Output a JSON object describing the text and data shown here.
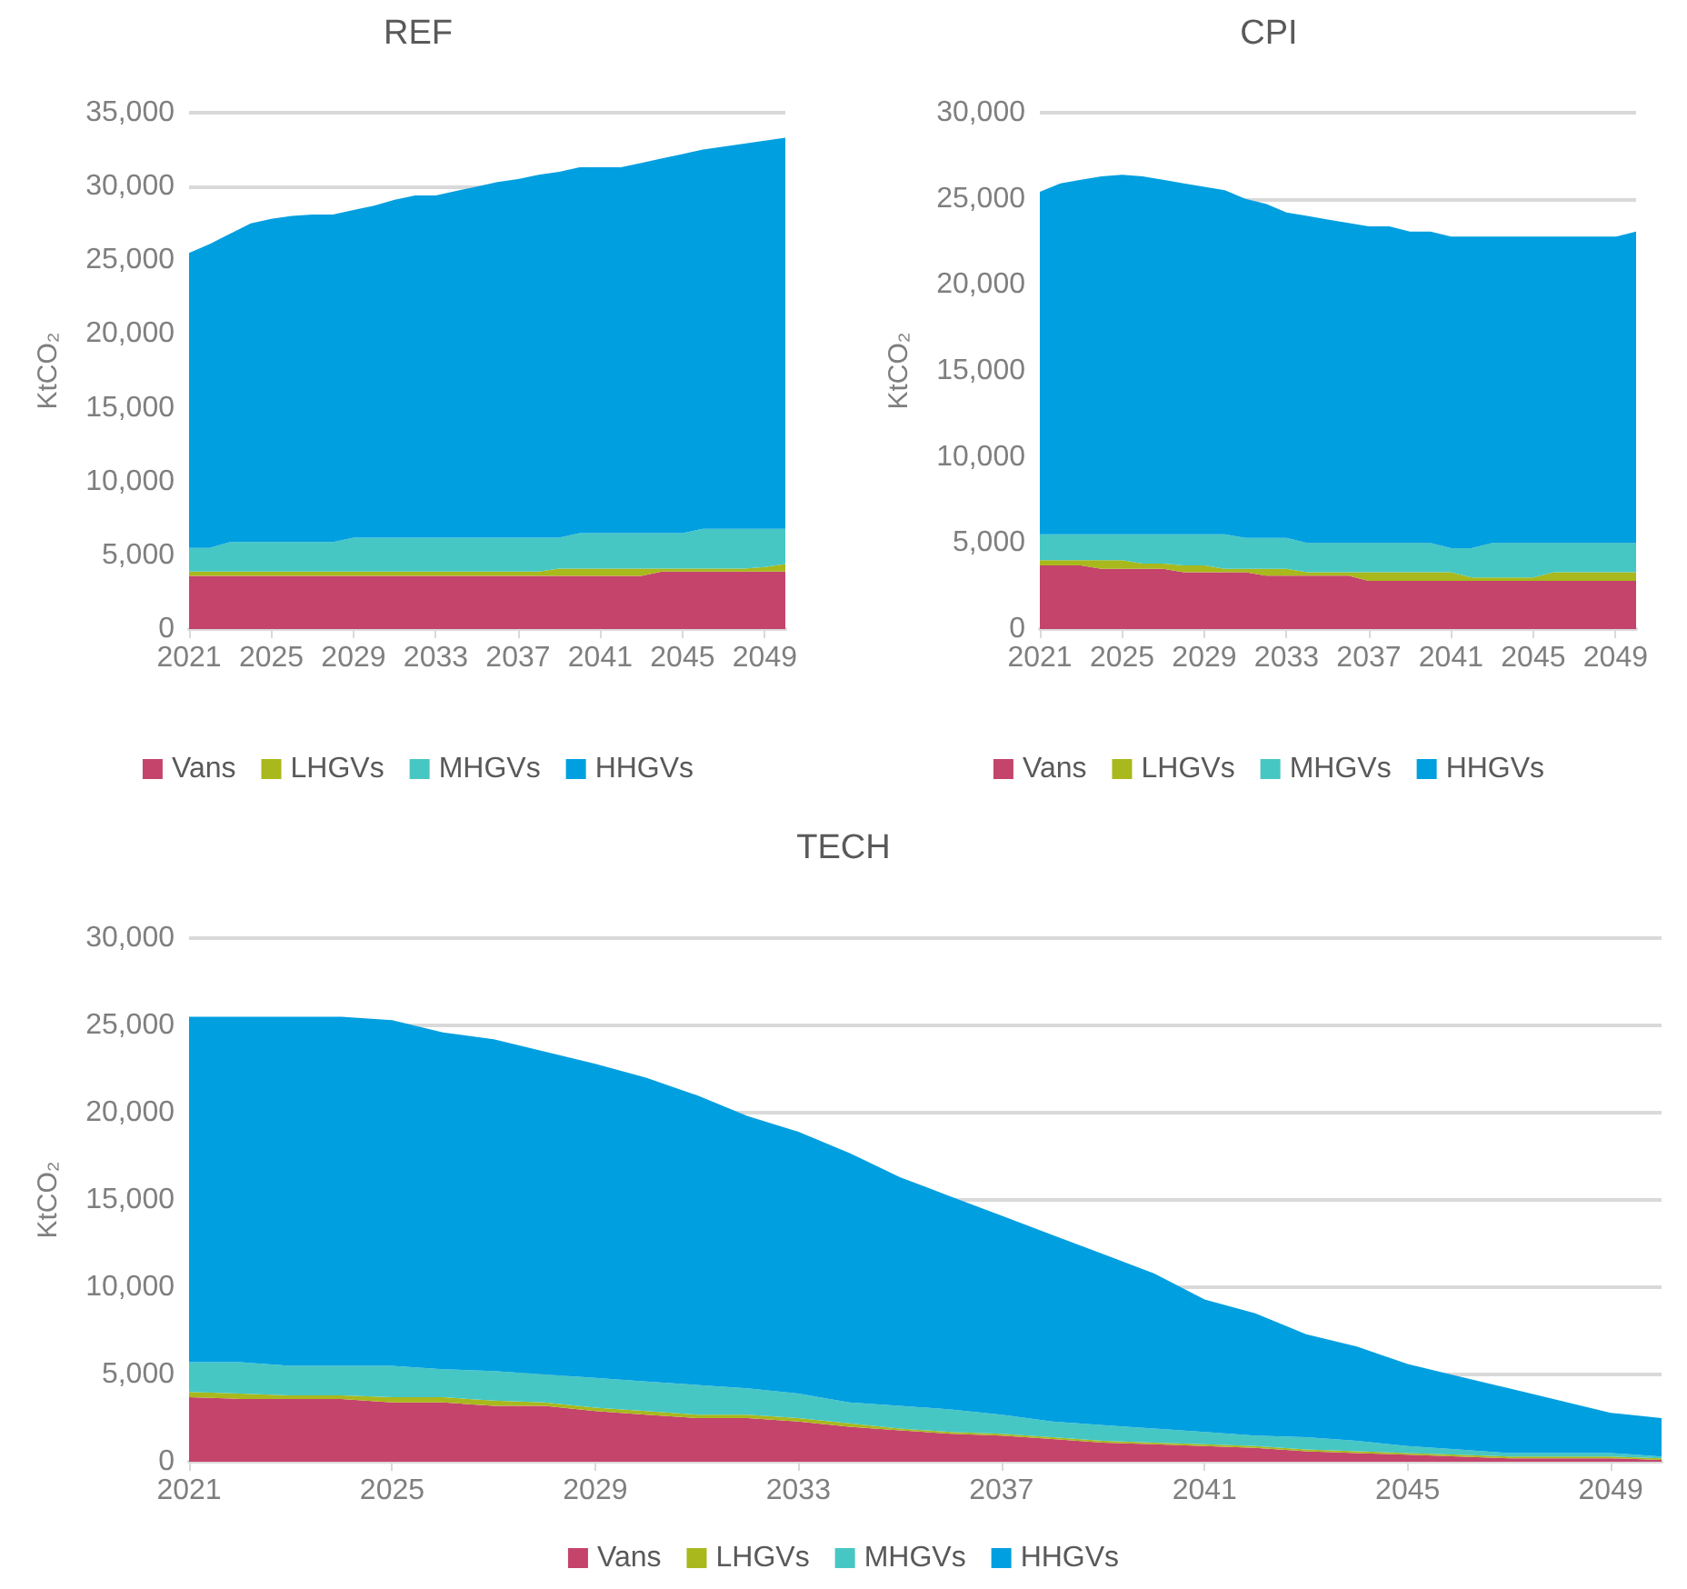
{
  "chart_data": [
    {
      "type": "area",
      "title": "REF",
      "ylabel": "KtCO₂",
      "stacked": true,
      "grid": "y",
      "legend": "bottom",
      "categories": [
        "2021",
        null,
        null,
        null,
        "2025",
        null,
        null,
        null,
        "2029",
        null,
        null,
        null,
        "2033",
        null,
        null,
        null,
        "2037",
        null,
        null,
        null,
        "2041",
        null,
        null,
        null,
        "2045",
        null,
        null,
        null,
        "2049",
        null
      ],
      "ylim": [
        0,
        35000
      ],
      "yticks": [
        {
          "value": 0,
          "label": "0"
        },
        {
          "value": 5000,
          "label": "5,000"
        },
        {
          "value": 10000,
          "label": "10,000"
        },
        {
          "value": 15000,
          "label": "15,000"
        },
        {
          "value": 20000,
          "label": "20,000"
        },
        {
          "value": 25000,
          "label": "25,000"
        },
        {
          "value": 30000,
          "label": "30,000"
        },
        {
          "value": 35000,
          "label": "35,000"
        }
      ],
      "series": [
        {
          "name": "Vans",
          "color": "#c4446c",
          "values": [
            3600,
            3600,
            3600,
            3600,
            3600,
            3600,
            3600,
            3600,
            3600,
            3600,
            3600,
            3600,
            3600,
            3600,
            3600,
            3600,
            3600,
            3600,
            3600,
            3600,
            3600,
            3600,
            3600,
            3900,
            3900,
            3900,
            3900,
            3900,
            3900,
            3900
          ]
        },
        {
          "name": "LHGVs",
          "color": "#a9b81c",
          "values": [
            300,
            300,
            300,
            300,
            300,
            300,
            300,
            300,
            300,
            300,
            300,
            300,
            300,
            300,
            300,
            300,
            300,
            300,
            500,
            500,
            500,
            500,
            500,
            200,
            200,
            200,
            200,
            200,
            300,
            500
          ]
        },
        {
          "name": "MHGVs",
          "color": "#47c7c3",
          "values": [
            1600,
            1600,
            2000,
            2000,
            2000,
            2000,
            2000,
            2000,
            2300,
            2300,
            2300,
            2300,
            2300,
            2300,
            2300,
            2300,
            2300,
            2300,
            2100,
            2400,
            2400,
            2400,
            2400,
            2400,
            2400,
            2700,
            2700,
            2700,
            2600,
            2400
          ]
        },
        {
          "name": "HHGVs",
          "color": "#009fe0",
          "values": [
            20000,
            20600,
            20900,
            21600,
            21900,
            22100,
            22200,
            22200,
            22200,
            22500,
            22900,
            23200,
            23200,
            23500,
            23800,
            24100,
            24300,
            24600,
            24800,
            24800,
            24800,
            24800,
            25100,
            25400,
            25700,
            25700,
            25900,
            26100,
            26300,
            26500
          ]
        }
      ]
    },
    {
      "type": "area",
      "title": "CPI",
      "ylabel": "KtCO₂",
      "stacked": true,
      "grid": "y",
      "legend": "bottom",
      "categories": [
        "2021",
        null,
        null,
        null,
        "2025",
        null,
        null,
        null,
        "2029",
        null,
        null,
        null,
        "2033",
        null,
        null,
        null,
        "2037",
        null,
        null,
        null,
        "2041",
        null,
        null,
        null,
        "2045",
        null,
        null,
        null,
        "2049",
        null
      ],
      "ylim": [
        0,
        30000
      ],
      "yticks": [
        {
          "value": 0,
          "label": "0"
        },
        {
          "value": 5000,
          "label": "5,000"
        },
        {
          "value": 10000,
          "label": "10,000"
        },
        {
          "value": 15000,
          "label": "15,000"
        },
        {
          "value": 20000,
          "label": "20,000"
        },
        {
          "value": 25000,
          "label": "25,000"
        },
        {
          "value": 30000,
          "label": "30,000"
        }
      ],
      "series": [
        {
          "name": "Vans",
          "color": "#c4446c",
          "values": [
            3700,
            3700,
            3700,
            3500,
            3500,
            3500,
            3500,
            3300,
            3300,
            3300,
            3300,
            3100,
            3100,
            3100,
            3100,
            3100,
            2800,
            2800,
            2800,
            2800,
            2800,
            2800,
            2800,
            2800,
            2800,
            2800,
            2800,
            2800,
            2800,
            2800
          ]
        },
        {
          "name": "LHGVs",
          "color": "#a9b81c",
          "values": [
            300,
            300,
            300,
            500,
            500,
            300,
            300,
            400,
            400,
            200,
            200,
            400,
            400,
            200,
            200,
            200,
            500,
            500,
            500,
            500,
            500,
            200,
            200,
            200,
            200,
            500,
            500,
            500,
            500,
            500
          ]
        },
        {
          "name": "MHGVs",
          "color": "#47c7c3",
          "values": [
            1500,
            1500,
            1500,
            1500,
            1500,
            1700,
            1700,
            1800,
            1800,
            2000,
            1800,
            1800,
            1800,
            1700,
            1700,
            1700,
            1700,
            1700,
            1700,
            1700,
            1400,
            1700,
            2000,
            2000,
            2000,
            1700,
            1700,
            1700,
            1700,
            1700
          ]
        },
        {
          "name": "HHGVs",
          "color": "#009fe0",
          "values": [
            19900,
            20400,
            20600,
            20800,
            20900,
            20800,
            20600,
            20400,
            20200,
            20000,
            19700,
            19400,
            18900,
            19000,
            18800,
            18600,
            18400,
            18400,
            18100,
            18100,
            18100,
            18100,
            17800,
            17800,
            17800,
            17800,
            17800,
            17800,
            17800,
            18100
          ]
        }
      ]
    },
    {
      "type": "area",
      "title": "TECH",
      "ylabel": "KtCO₂",
      "stacked": true,
      "grid": "y",
      "legend": "bottom",
      "categories": [
        "2021",
        null,
        null,
        null,
        "2025",
        null,
        null,
        null,
        "2029",
        null,
        null,
        null,
        "2033",
        null,
        null,
        null,
        "2037",
        null,
        null,
        null,
        "2041",
        null,
        null,
        null,
        "2045",
        null,
        null,
        null,
        "2049",
        null
      ],
      "ylim": [
        0,
        30000
      ],
      "yticks": [
        {
          "value": 0,
          "label": "0"
        },
        {
          "value": 5000,
          "label": "5,000"
        },
        {
          "value": 10000,
          "label": "10,000"
        },
        {
          "value": 15000,
          "label": "15,000"
        },
        {
          "value": 20000,
          "label": "20,000"
        },
        {
          "value": 25000,
          "label": "25,000"
        },
        {
          "value": 30000,
          "label": "30,000"
        }
      ],
      "series": [
        {
          "name": "Vans",
          "color": "#c4446c",
          "values": [
            3700,
            3600,
            3600,
            3600,
            3400,
            3400,
            3200,
            3200,
            2900,
            2700,
            2500,
            2500,
            2300,
            2000,
            1800,
            1600,
            1500,
            1300,
            1100,
            1000,
            900,
            800,
            600,
            500,
            400,
            300,
            200,
            200,
            200,
            100
          ]
        },
        {
          "name": "LHGVs",
          "color": "#a9b81c",
          "values": [
            300,
            300,
            200,
            200,
            300,
            300,
            300,
            200,
            200,
            200,
            200,
            200,
            200,
            200,
            100,
            100,
            100,
            100,
            100,
            100,
            100,
            100,
            100,
            100,
            100,
            100,
            100,
            100,
            100,
            100
          ]
        },
        {
          "name": "MHGVs",
          "color": "#47c7c3",
          "values": [
            1700,
            1800,
            1700,
            1700,
            1800,
            1600,
            1700,
            1600,
            1700,
            1700,
            1700,
            1500,
            1400,
            1200,
            1300,
            1300,
            1100,
            900,
            900,
            800,
            700,
            600,
            700,
            600,
            400,
            300,
            200,
            200,
            200,
            100
          ]
        },
        {
          "name": "HHGVs",
          "color": "#009fe0",
          "values": [
            19800,
            19800,
            20000,
            20000,
            19800,
            19300,
            19000,
            18500,
            18000,
            17400,
            16600,
            15600,
            15000,
            14300,
            13100,
            12200,
            11400,
            10700,
            9800,
            8900,
            7600,
            7000,
            5900,
            5400,
            4700,
            4200,
            3700,
            3000,
            2300,
            2200
          ]
        }
      ]
    }
  ]
}
